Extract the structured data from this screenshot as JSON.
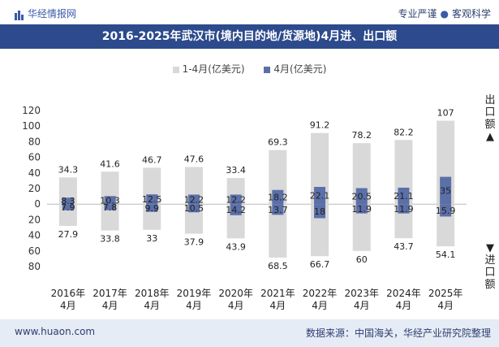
{
  "header": {
    "logo_text": "华经情报网",
    "right_text_1": "专业严谨",
    "right_text_2": "客观科学",
    "title": "2016-2025年武汉市(境内目的地/货源地)4月进、出口额"
  },
  "side_labels": {
    "export": "出口额▲",
    "import": "▼进口额"
  },
  "footer": {
    "left": "www.huaon.com",
    "right": "数据来源：中国海关，华经产业研究院整理"
  },
  "colors": {
    "title_bg": "#2c4a8c",
    "cumulative": "#d9d9d9",
    "month": "#5b6fa8",
    "footer_bg": "#e6ecf5"
  },
  "chart_data": {
    "type": "bar",
    "categories": [
      "2016年\n4月",
      "2017年\n4月",
      "2018年\n4月",
      "2019年\n4月",
      "2020年\n4月",
      "2021年\n4月",
      "2022年\n4月",
      "2023年\n4月",
      "2024年\n4月",
      "2025年\n4月"
    ],
    "ylim": [
      -80,
      120
    ],
    "y_ticks": [
      120,
      100,
      80,
      60,
      40,
      20,
      0,
      -20,
      -40,
      -60,
      -80
    ],
    "y_tick_labels": [
      "120",
      "100",
      "80",
      "60",
      "40",
      "20",
      "0",
      "20",
      "40",
      "60",
      "80"
    ],
    "series": [
      {
        "name": "1-4月(亿美元)",
        "export": [
          34.3,
          41.6,
          46.7,
          47.6,
          33.4,
          69.3,
          91.2,
          78.2,
          82.2,
          107
        ],
        "import": [
          27.9,
          33.8,
          33,
          37.9,
          43.9,
          68.5,
          66.7,
          60,
          43.7,
          54.1
        ]
      },
      {
        "name": "4月(亿美元)",
        "export": [
          8.3,
          10.3,
          12.5,
          12.2,
          12.2,
          18.2,
          22.1,
          20.5,
          21.1,
          35
        ],
        "import": [
          7.9,
          7.8,
          9.9,
          10.5,
          14.2,
          13.7,
          18,
          11.9,
          11.9,
          15.9
        ]
      }
    ],
    "legend_position": "top-center"
  }
}
